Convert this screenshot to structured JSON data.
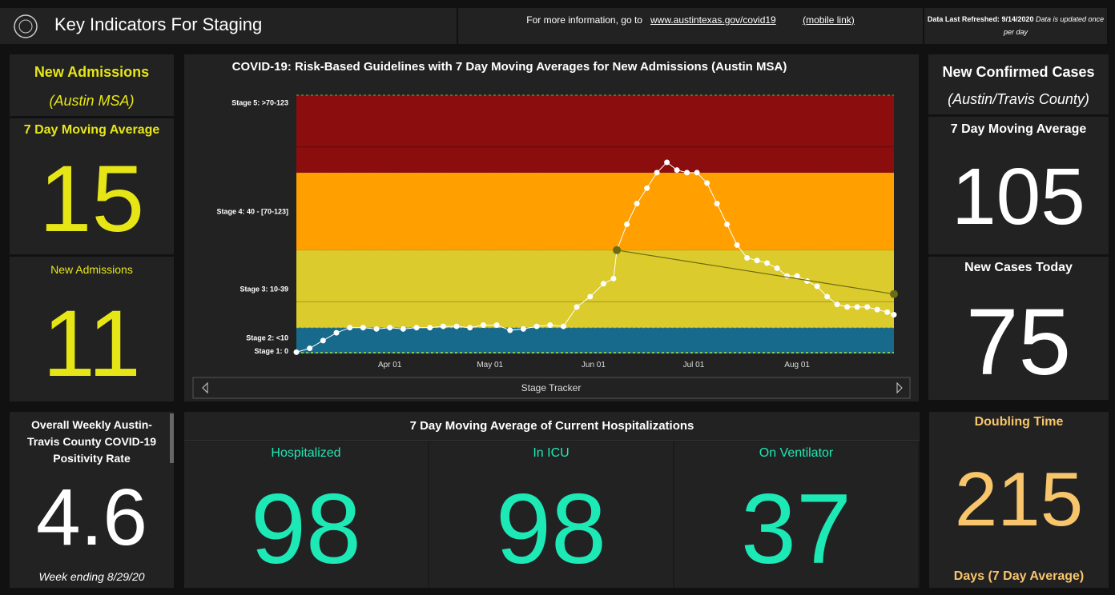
{
  "header": {
    "title": "Key Indicators For Staging",
    "info_text": "For more information, go to",
    "info_link": "www.austintexas.gov/covid19",
    "mobile_link": "(mobile link)",
    "refreshed_label": "Data Last Refreshed:",
    "refreshed_date": "9/14/2020",
    "refreshed_note": "Data is updated once per day"
  },
  "admissions": {
    "title": "New Admissions",
    "subtitle": "(Austin MSA)",
    "avg_label": "7 Day Moving Average",
    "avg_value": "15",
    "today_label": "New Admissions",
    "today_value": "11"
  },
  "cases": {
    "title": "New Confirmed Cases",
    "subtitle": "(Austin/Travis County)",
    "avg_label": "7 Day Moving Average",
    "avg_value": "105",
    "today_label": "New Cases Today",
    "today_value": "75"
  },
  "positivity": {
    "title": "Overall  Weekly Austin-Travis County COVID-19 Positivity Rate",
    "value": "4.6",
    "note": "Week ending 8/29/20"
  },
  "hospitalizations": {
    "title": "7 Day Moving Average of Current Hospitalizations",
    "items": [
      {
        "label": "Hospitalized",
        "value": "98"
      },
      {
        "label": "In ICU",
        "value": "98"
      },
      {
        "label": "On Ventilator",
        "value": "37"
      }
    ]
  },
  "doubling": {
    "title": "Doubling Time",
    "value": "215",
    "note": "Days (7 Day Average)"
  },
  "chart_data": {
    "type": "line",
    "title": "COVID-19: Risk-Based Guidelines with 7 Day Moving Averages for New Admissions (Austin MSA)",
    "footer": "Stage Tracker",
    "x": [
      "Mar 04",
      "Mar 08",
      "Mar 12",
      "Mar 16",
      "Mar 20",
      "Mar 24",
      "Mar 28",
      "Apr 01",
      "Apr 05",
      "Apr 09",
      "Apr 13",
      "Apr 17",
      "Apr 21",
      "Apr 25",
      "Apr 29",
      "May 03",
      "May 07",
      "May 11",
      "May 15",
      "May 19",
      "May 23",
      "May 27",
      "May 31",
      "Jun 04",
      "Jun 07",
      "Jun 08",
      "Jun 11",
      "Jun 14",
      "Jun 17",
      "Jun 20",
      "Jun 23",
      "Jun 26",
      "Jun 29",
      "Jul 02",
      "Jul 05",
      "Jul 08",
      "Jul 11",
      "Jul 14",
      "Jul 17",
      "Jul 20",
      "Jul 23",
      "Jul 26",
      "Jul 29",
      "Aug 01",
      "Aug 04",
      "Aug 07",
      "Aug 10",
      "Aug 13",
      "Aug 16",
      "Aug 19",
      "Aug 22",
      "Aug 25",
      "Aug 28",
      "Aug 30"
    ],
    "values": [
      0.5,
      2,
      5,
      8,
      10,
      10,
      9.5,
      10,
      9.5,
      10,
      10,
      10.5,
      10.5,
      10,
      11,
      11,
      9,
      9.5,
      10.5,
      11,
      10.5,
      18,
      22,
      27,
      29,
      40,
      50,
      58,
      64,
      70,
      74,
      71,
      70,
      70,
      66,
      58,
      50,
      42,
      37,
      36,
      35,
      33,
      30,
      30,
      28,
      26,
      22,
      19,
      18,
      18,
      18,
      17,
      16,
      15
    ],
    "color": "#ffffff",
    "trend_x": [
      "Jun 08",
      "Aug 30"
    ],
    "trend_values": [
      40,
      23
    ],
    "trend_color": "#6b6b14",
    "xlim": [
      "Mar 04",
      "Aug 30"
    ],
    "xticks": [
      "Apr 01",
      "May 01",
      "Jun 01",
      "Jul 01",
      "Aug 01"
    ],
    "ylim": [
      0,
      100
    ],
    "yticks": [
      {
        "value": 97,
        "label": "Stage 5: >70-123"
      },
      {
        "value": 55,
        "label": "Stage 4: 40 - [70-123]"
      },
      {
        "value": 25,
        "label": "Stage 3: 10-39"
      },
      {
        "value": 6,
        "label": "Stage 2: <10"
      },
      {
        "value": 1,
        "label": "Stage 1: 0"
      }
    ],
    "bands": [
      {
        "from": 0,
        "to": 10,
        "color": "#176a8c"
      },
      {
        "from": 10,
        "to": 40,
        "color": "#dccb2c"
      },
      {
        "from": 40,
        "to": 70,
        "color": "#ff9f00"
      },
      {
        "from": 70,
        "to": 100,
        "color": "#8b0d0d"
      }
    ],
    "grid_lines": [
      20,
      80
    ]
  }
}
